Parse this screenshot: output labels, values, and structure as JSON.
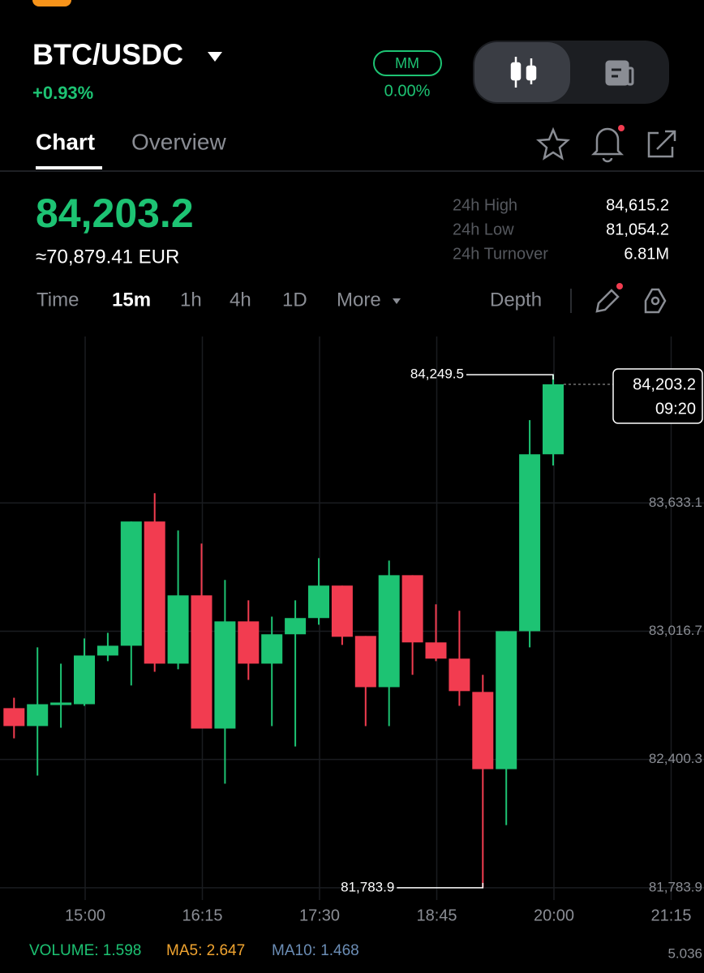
{
  "header": {
    "pair": "BTC/USDC",
    "change": "+0.93%",
    "mode": "MM",
    "mode_value": "0.00%"
  },
  "tabs": [
    "Chart",
    "Overview"
  ],
  "price": {
    "last": "84,203.2",
    "converted": "≈70,879.41 EUR"
  },
  "stats": [
    {
      "label": "24h High",
      "value": "84,615.2"
    },
    {
      "label": "24h Low",
      "value": "81,054.2"
    },
    {
      "label": "24h Turnover",
      "value": "6.81M"
    }
  ],
  "intervals": [
    "Time",
    "15m",
    "1h",
    "4h",
    "1D",
    "More"
  ],
  "depth": "Depth",
  "chart_data": {
    "type": "candlestick",
    "open": [
      82647,
      82561,
      82662,
      82666,
      82900,
      82947,
      83544,
      82861,
      83189,
      82549,
      83064,
      82861,
      83002,
      83080,
      83236,
      82994,
      82748,
      83286,
      82963,
      82885,
      82725,
      82354,
      83017,
      83867
    ],
    "high": [
      82697,
      82939,
      82861,
      82982,
      83009,
      83544,
      83680,
      83501,
      83438,
      83263,
      83165,
      83087,
      83165,
      83368,
      83236,
      82994,
      83356,
      83286,
      83146,
      83115,
      82807,
      83017,
      84031,
      84249.5
    ],
    "low": [
      82502,
      82323,
      82553,
      82658,
      82873,
      82756,
      82822,
      82834,
      82549,
      82284,
      82783,
      82561,
      82463,
      83048,
      82951,
      82561,
      82561,
      82807,
      82873,
      82658,
      81783.9,
      82085,
      82939,
      83813
    ],
    "close": [
      82561,
      82666,
      82674,
      82900,
      82947,
      83544,
      82861,
      83189,
      82549,
      83064,
      82861,
      83002,
      83080,
      83236,
      82990,
      82748,
      83286,
      82963,
      82885,
      82729,
      82354,
      83017,
      83867,
      84203.2
    ],
    "colors": {
      "up": "#1dc373",
      "down": "#f23c50"
    },
    "ylim": [
      81725,
      84433
    ],
    "yticks": [
      {
        "value": 83633.1,
        "label": "83,633.1"
      },
      {
        "value": 83016.7,
        "label": "83,016.7"
      },
      {
        "value": 82400.3,
        "label": "82,400.3"
      },
      {
        "value": 81783.9,
        "label": "81,783.9"
      }
    ],
    "x_labels": [
      "15:00",
      "16:15",
      "17:30",
      "18:45",
      "20:00",
      "21:15"
    ],
    "grid": true,
    "annotations": {
      "high": "84,249.5",
      "low": "81,783.9",
      "last": "84,203.2",
      "countdown": "09:20"
    }
  },
  "indicators": {
    "volume": "VOLUME: 1.598",
    "ma5": "MA5: 2.647",
    "ma10": "MA10: 1.468",
    "scale": "5.036"
  }
}
